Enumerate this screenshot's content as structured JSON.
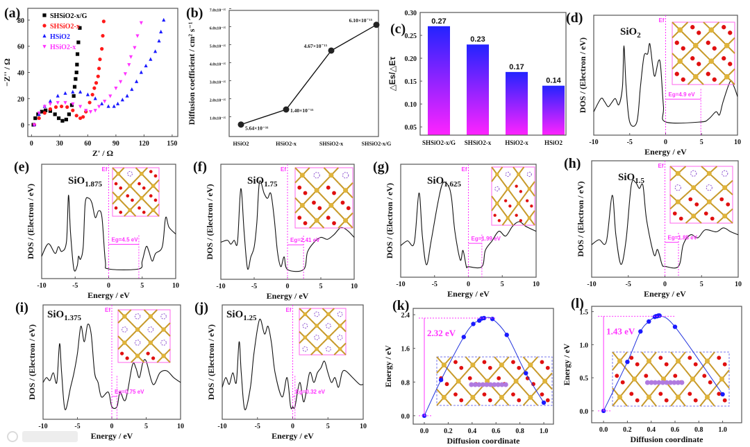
{
  "watermark": "大数跨境",
  "chart_data": [
    {
      "id": "a",
      "panel_label": "(a)",
      "type": "scatter",
      "xlabel": "Z' / Ω",
      "ylabel": "−Z'' / Ω",
      "xlim": [
        -4,
        156
      ],
      "ylim": [
        -9,
        89
      ],
      "xticks": [
        0,
        30,
        60,
        90,
        120,
        150
      ],
      "yticks": [
        0,
        20,
        40,
        60,
        80
      ],
      "legend_position": "top-left",
      "series": [
        {
          "name": "SHSiO2-x/G",
          "color": "#000000",
          "marker": "square",
          "x": [
            2,
            4,
            7,
            11,
            15,
            20,
            25,
            29,
            33,
            37,
            40,
            43,
            45,
            46,
            47,
            48,
            48.5,
            49,
            50,
            51.5
          ],
          "y": [
            0,
            5,
            8,
            10,
            11,
            10.5,
            8,
            5,
            3,
            4,
            8,
            15,
            22,
            29,
            35,
            40,
            46,
            54,
            63,
            74
          ]
        },
        {
          "name": "SHSiO2-x",
          "color": "#ff1a1a",
          "marker": "circle",
          "x": [
            3,
            8,
            14,
            20,
            26,
            32,
            38,
            44,
            48,
            52,
            55,
            58,
            62,
            65,
            67,
            69,
            71,
            72,
            73,
            75,
            76,
            77
          ],
          "y": [
            0,
            5,
            9,
            12,
            13.5,
            14,
            13.5,
            11,
            7,
            5,
            6,
            10,
            17,
            23,
            28,
            32,
            37,
            43,
            50,
            58,
            68,
            79
          ]
        },
        {
          "name": "HSiO2",
          "color": "#1a1aff",
          "marker": "triangle-up",
          "x": [
            3,
            8,
            14,
            20,
            28,
            36,
            44,
            52,
            60,
            68,
            75,
            82,
            88,
            92,
            97,
            102,
            107,
            112,
            117,
            122,
            127,
            132,
            136,
            138,
            141
          ],
          "y": [
            0,
            8,
            14,
            18,
            22,
            24,
            25,
            25,
            23,
            20,
            16,
            14,
            14,
            16,
            19,
            22,
            27,
            33,
            40,
            45,
            50,
            56,
            64,
            71,
            80
          ]
        },
        {
          "name": "HSiO2-x",
          "color": "#ff33ff",
          "marker": "triangle-down",
          "x": [
            3,
            8,
            14,
            20,
            28,
            36,
            44,
            52,
            58,
            63,
            68,
            72,
            78,
            84,
            90,
            95,
            100,
            104,
            106,
            110,
            113,
            117
          ],
          "y": [
            0,
            9,
            14,
            16,
            17,
            17,
            16,
            14,
            11,
            10,
            11,
            14,
            18,
            22,
            28,
            33,
            39,
            46,
            52,
            59,
            68,
            78
          ]
        }
      ]
    },
    {
      "id": "b",
      "panel_label": "(b)",
      "type": "line",
      "ylabel": "Diffusion coefficient / cm² s⁻¹",
      "categories": [
        "HSiO2",
        "HSiO2-x",
        "SHSiO2-x",
        "SHSiO2-x/G"
      ],
      "values_e15": [
        0.564,
        1.4,
        4.67,
        6.1
      ],
      "data_labels": [
        "5.64×10⁻¹⁶",
        "1.40×10⁻¹⁵",
        "4.67×10⁻¹⁵",
        "6.10×10⁻¹⁵"
      ],
      "ylim_e15": [
        -0.1,
        6.9
      ],
      "yticks_e15": [
        1,
        2,
        3,
        4,
        5,
        6,
        7
      ],
      "ytick_labels": [
        "1.0x10⁻¹⁵",
        "2.0x10⁻¹⁵",
        "3.0x10⁻¹⁵",
        "4.0x10⁻¹⁵",
        "5.0x10⁻¹⁵",
        "6.0x10⁻¹⁵",
        "7.0x10⁻¹⁵"
      ]
    },
    {
      "id": "c",
      "panel_label": "(c)",
      "type": "bar",
      "ylabel": "△Es/△Eτ",
      "categories": [
        "SHSiO2-x/G",
        "SHSiO2-x",
        "HSiO2-x",
        "HSiO2"
      ],
      "values": [
        0.27,
        0.23,
        0.17,
        0.14
      ],
      "data_labels": [
        "0.27",
        "0.23",
        "0.17",
        "0.14"
      ],
      "ylim": [
        0.032,
        0.3
      ],
      "yticks": [
        0.05,
        0.1,
        0.15,
        0.2,
        0.25,
        0.3
      ],
      "ytick_labels": [
        "0.05",
        "0.10",
        "0.15",
        "0.20",
        "0.25",
        "0.30"
      ],
      "gradient": [
        "#2323ff",
        "#ff23ff"
      ]
    },
    {
      "id": "d",
      "panel_label": "(d)",
      "type": "line",
      "formula": {
        "base": "SiO",
        "sub": "2"
      },
      "xlabel": "Energy / eV",
      "ylabel": "DOS / (Electron / eV)",
      "fermi_label": "Ef",
      "gap_ev": 4.9,
      "gap_label": "Eg=4.9 eV",
      "xlim": [
        -10,
        10
      ],
      "ylim": [
        -8,
        110
      ],
      "xticks": [
        -10,
        -5,
        0,
        5,
        10
      ],
      "x": [
        -10,
        -9,
        -8.5,
        -8,
        -7.5,
        -7,
        -6.5,
        -6,
        -5.8,
        -5.5,
        -5,
        -4,
        -3.5,
        -3,
        -2.5,
        -2.2,
        -1.8,
        -1.5,
        -1,
        -0.7,
        -0.3,
        0,
        4.9,
        6,
        7,
        7.5,
        8,
        9,
        9.5,
        10
      ],
      "y": [
        15,
        28,
        25,
        20,
        24,
        28,
        22,
        40,
        80,
        40,
        5,
        5,
        40,
        70,
        72,
        82,
        60,
        50,
        65,
        60,
        20,
        5,
        5,
        8,
        15,
        12,
        25,
        45,
        40,
        30
      ]
    },
    {
      "id": "e",
      "panel_label": "(e)",
      "type": "line",
      "formula": {
        "base": "SiO",
        "sub": "1.875"
      },
      "xlabel": "Energy / eV",
      "ylabel": "DOS / (Electron / eV)",
      "fermi_label": "Ef",
      "gap_ev": 4.5,
      "gap_label": "Eg=4.5 eV",
      "xlim": [
        -10,
        10
      ],
      "ylim": [
        -8,
        110
      ],
      "xticks": [
        -10,
        -5,
        0,
        5,
        10
      ],
      "x": [
        -10,
        -9,
        -8,
        -7.5,
        -7,
        -6.3,
        -6,
        -5.7,
        -5.2,
        -4.7,
        -4.5,
        -4.2,
        -3.8,
        -3.5,
        -3,
        -2.5,
        -2,
        -1.5,
        -1,
        -0.5,
        0,
        4.5,
        5,
        5.6,
        6,
        6.5,
        7,
        8,
        8.5,
        9,
        10
      ],
      "y": [
        15,
        28,
        18,
        25,
        20,
        30,
        78,
        40,
        2,
        5,
        15,
        12,
        25,
        70,
        75,
        70,
        55,
        62,
        55,
        10,
        2,
        2,
        10,
        25,
        20,
        10,
        18,
        25,
        55,
        45,
        38
      ]
    },
    {
      "id": "f",
      "panel_label": "(f)",
      "type": "line",
      "formula": {
        "base": "SiO",
        "sub": "1.75"
      },
      "xlabel": "Energy / eV",
      "ylabel": "DOS / (Electron / eV)",
      "fermi_label": "Ef",
      "gap_ev": 2.41,
      "gap_label": "Eg=2.41 eV",
      "xlim": [
        -10,
        10
      ],
      "ylim": [
        -8,
        110
      ],
      "xticks": [
        -10,
        -5,
        0,
        5,
        10
      ],
      "x": [
        -10,
        -9,
        -8.5,
        -8,
        -7.5,
        -7,
        -6.5,
        -6,
        -5.5,
        -5,
        -4.6,
        -4.2,
        -3.5,
        -3,
        -2.5,
        -2,
        -1.5,
        -1,
        -0.5,
        0,
        2.41,
        3,
        4,
        5,
        6,
        7,
        8,
        9,
        10
      ],
      "y": [
        30,
        32,
        28,
        32,
        30,
        85,
        40,
        3,
        15,
        25,
        50,
        92,
        80,
        75,
        80,
        55,
        20,
        5,
        15,
        2,
        2,
        20,
        30,
        35,
        33,
        38,
        45,
        42,
        35
      ]
    },
    {
      "id": "g",
      "panel_label": "(g)",
      "type": "line",
      "formula": {
        "base": "SiO",
        "sub": "1.625"
      },
      "xlabel": "Energy / eV",
      "ylabel": "DOS / (Electron / eV)",
      "fermi_label": "Ef",
      "gap_ev": 1.99,
      "gap_label": "Eg=1.99 eV",
      "xlim": [
        -10,
        10
      ],
      "ylim": [
        -8,
        110
      ],
      "xticks": [
        -10,
        -5,
        0,
        5,
        10
      ],
      "x": [
        -10,
        -9,
        -8,
        -7.3,
        -6.8,
        -6.2,
        -5.5,
        -4.5,
        -3.8,
        -3,
        -2.5,
        -2,
        -1.2,
        -0.8,
        -0.3,
        0,
        1.99,
        2.5,
        3.5,
        4.5,
        5.5,
        6.5,
        7.5,
        8.5,
        10
      ],
      "y": [
        25,
        30,
        28,
        80,
        35,
        5,
        30,
        70,
        90,
        88,
        75,
        40,
        10,
        20,
        3,
        3,
        3,
        20,
        30,
        40,
        35,
        45,
        50,
        45,
        40
      ]
    },
    {
      "id": "h",
      "panel_label": "(h)",
      "type": "line",
      "formula": {
        "base": "SiO",
        "sub": "1.5"
      },
      "xlabel": "Energy / eV",
      "ylabel": "DOS / (Electron / eV)",
      "fermi_label": "Ef",
      "gap_ev": 1.85,
      "gap_label": "Eg=1.85 eV",
      "xlim": [
        -10,
        10
      ],
      "ylim": [
        -8,
        110
      ],
      "xticks": [
        -10,
        -5,
        0,
        5,
        10
      ],
      "x": [
        -10,
        -9,
        -8,
        -7.2,
        -6.7,
        -6,
        -5.3,
        -4.6,
        -4,
        -3.5,
        -3,
        -2.5,
        -1.5,
        -1,
        -0.4,
        0,
        1.85,
        2.5,
        3.5,
        4.5,
        5.5,
        7,
        8,
        9,
        10
      ],
      "y": [
        25,
        30,
        28,
        75,
        35,
        5,
        30,
        85,
        88,
        82,
        85,
        50,
        15,
        20,
        5,
        3,
        3,
        25,
        35,
        32,
        40,
        38,
        42,
        38,
        35
      ]
    },
    {
      "id": "i",
      "panel_label": "(i)",
      "type": "line",
      "formula": {
        "base": "SiO",
        "sub": "1.375"
      },
      "xlabel": "Energy / eV",
      "ylabel": "DOS / (Electron / eV)",
      "fermi_label": "Ef",
      "gap_ev": 0.75,
      "gap_label": "Eg=0.75 eV",
      "xlim": [
        -10,
        10
      ],
      "ylim": [
        -8,
        110
      ],
      "xticks": [
        -10,
        -5,
        0,
        5,
        10
      ],
      "x": [
        -10,
        -9.5,
        -9,
        -8.5,
        -8,
        -7.6,
        -7.3,
        -6.8,
        -6,
        -5.5,
        -5,
        -4.5,
        -4,
        -3.5,
        -3,
        -2.5,
        -2,
        -1.5,
        -0.5,
        0,
        0.75,
        1.2,
        2,
        3,
        3.5,
        4,
        4.5,
        5,
        6,
        7,
        8,
        9,
        10
      ],
      "y": [
        30,
        35,
        32,
        40,
        30,
        70,
        40,
        2,
        25,
        40,
        60,
        88,
        72,
        90,
        80,
        40,
        30,
        15,
        20,
        5,
        5,
        20,
        12,
        48,
        45,
        35,
        50,
        52,
        28,
        40,
        42,
        35,
        30
      ]
    },
    {
      "id": "j",
      "panel_label": "(j)",
      "type": "line",
      "formula": {
        "base": "SiO",
        "sub": "1.25"
      },
      "xlabel": "Energy / eV",
      "ylabel": "DOS / (Electron / eV)",
      "fermi_label": "Ef",
      "gap_ev": 0.32,
      "gap_label": "Eg=0.32 eV",
      "xlim": [
        -10,
        10
      ],
      "ylim": [
        -8,
        110
      ],
      "xticks": [
        -10,
        -5,
        0,
        5,
        10
      ],
      "x": [
        -10,
        -9.5,
        -9,
        -8.5,
        -8,
        -7.6,
        -7.3,
        -6.8,
        -6,
        -5.5,
        -4.7,
        -4,
        -3.5,
        -3,
        -2.5,
        -1.5,
        -0.8,
        -0.3,
        0,
        0.32,
        1,
        1.6,
        2.4,
        3,
        3.5,
        4,
        4.5,
        5,
        5.5,
        6,
        6.5,
        7,
        7.5,
        8.5,
        9.5,
        10
      ],
      "y": [
        25,
        35,
        28,
        40,
        30,
        72,
        40,
        2,
        25,
        60,
        95,
        80,
        88,
        70,
        40,
        15,
        35,
        5,
        5,
        5,
        30,
        10,
        40,
        30,
        40,
        45,
        52,
        40,
        30,
        35,
        25,
        40,
        42,
        35,
        28,
        28
      ]
    },
    {
      "id": "k",
      "panel_label": "(k)",
      "type": "line",
      "xlabel": "Diffusion coordinate",
      "ylabel": "Energy / eV",
      "barrier_label": "2.32 eV",
      "barrier_ev": 2.32,
      "xlim": [
        -0.093,
        1.081
      ],
      "ylim": [
        -0.2,
        2.55
      ],
      "xticks": [
        0.0,
        0.2,
        0.4,
        0.6,
        0.8,
        1.0
      ],
      "yticks": [
        0.0,
        0.8,
        1.6,
        2.4
      ],
      "xtick_labels": [
        "0.0",
        "0.2",
        "0.4",
        "0.6",
        "0.8",
        "1.0"
      ],
      "ytick_labels": [
        "0.0",
        "0.8",
        "1.6",
        "2.4"
      ],
      "x": [
        0,
        0.14,
        0.33,
        0.41,
        0.46,
        0.48,
        0.5,
        0.57,
        0.69,
        0.85,
        1.0
      ],
      "y": [
        0,
        0.85,
        1.87,
        2.18,
        2.26,
        2.31,
        2.32,
        2.3,
        1.92,
        1.01,
        0.31
      ]
    },
    {
      "id": "l",
      "panel_label": "(l)",
      "type": "line",
      "xlabel": "Diffusion coordinate",
      "ylabel": "Energy / eV",
      "barrier_label": "1.43 eV",
      "barrier_ev": 1.43,
      "xlim": [
        -0.1,
        1.16
      ],
      "ylim": [
        -0.18,
        1.58
      ],
      "xticks": [
        0.0,
        0.2,
        0.4,
        0.6,
        0.8,
        1.0
      ],
      "yticks": [
        0.0,
        0.5,
        1.0,
        1.5
      ],
      "xtick_labels": [
        "0.0",
        "0.2",
        "0.4",
        "0.6",
        "0.8",
        "1.0"
      ],
      "ytick_labels": [
        "0.0",
        "0.5",
        "1.0",
        "1.5"
      ],
      "x": [
        0,
        0.2,
        0.31,
        0.38,
        0.43,
        0.44,
        0.45,
        0.46,
        0.47,
        0.6,
        1.0
      ],
      "y": [
        0,
        0.74,
        1.2,
        1.35,
        1.42,
        1.43,
        1.43,
        1.44,
        1.44,
        1.27,
        0.25
      ]
    }
  ]
}
